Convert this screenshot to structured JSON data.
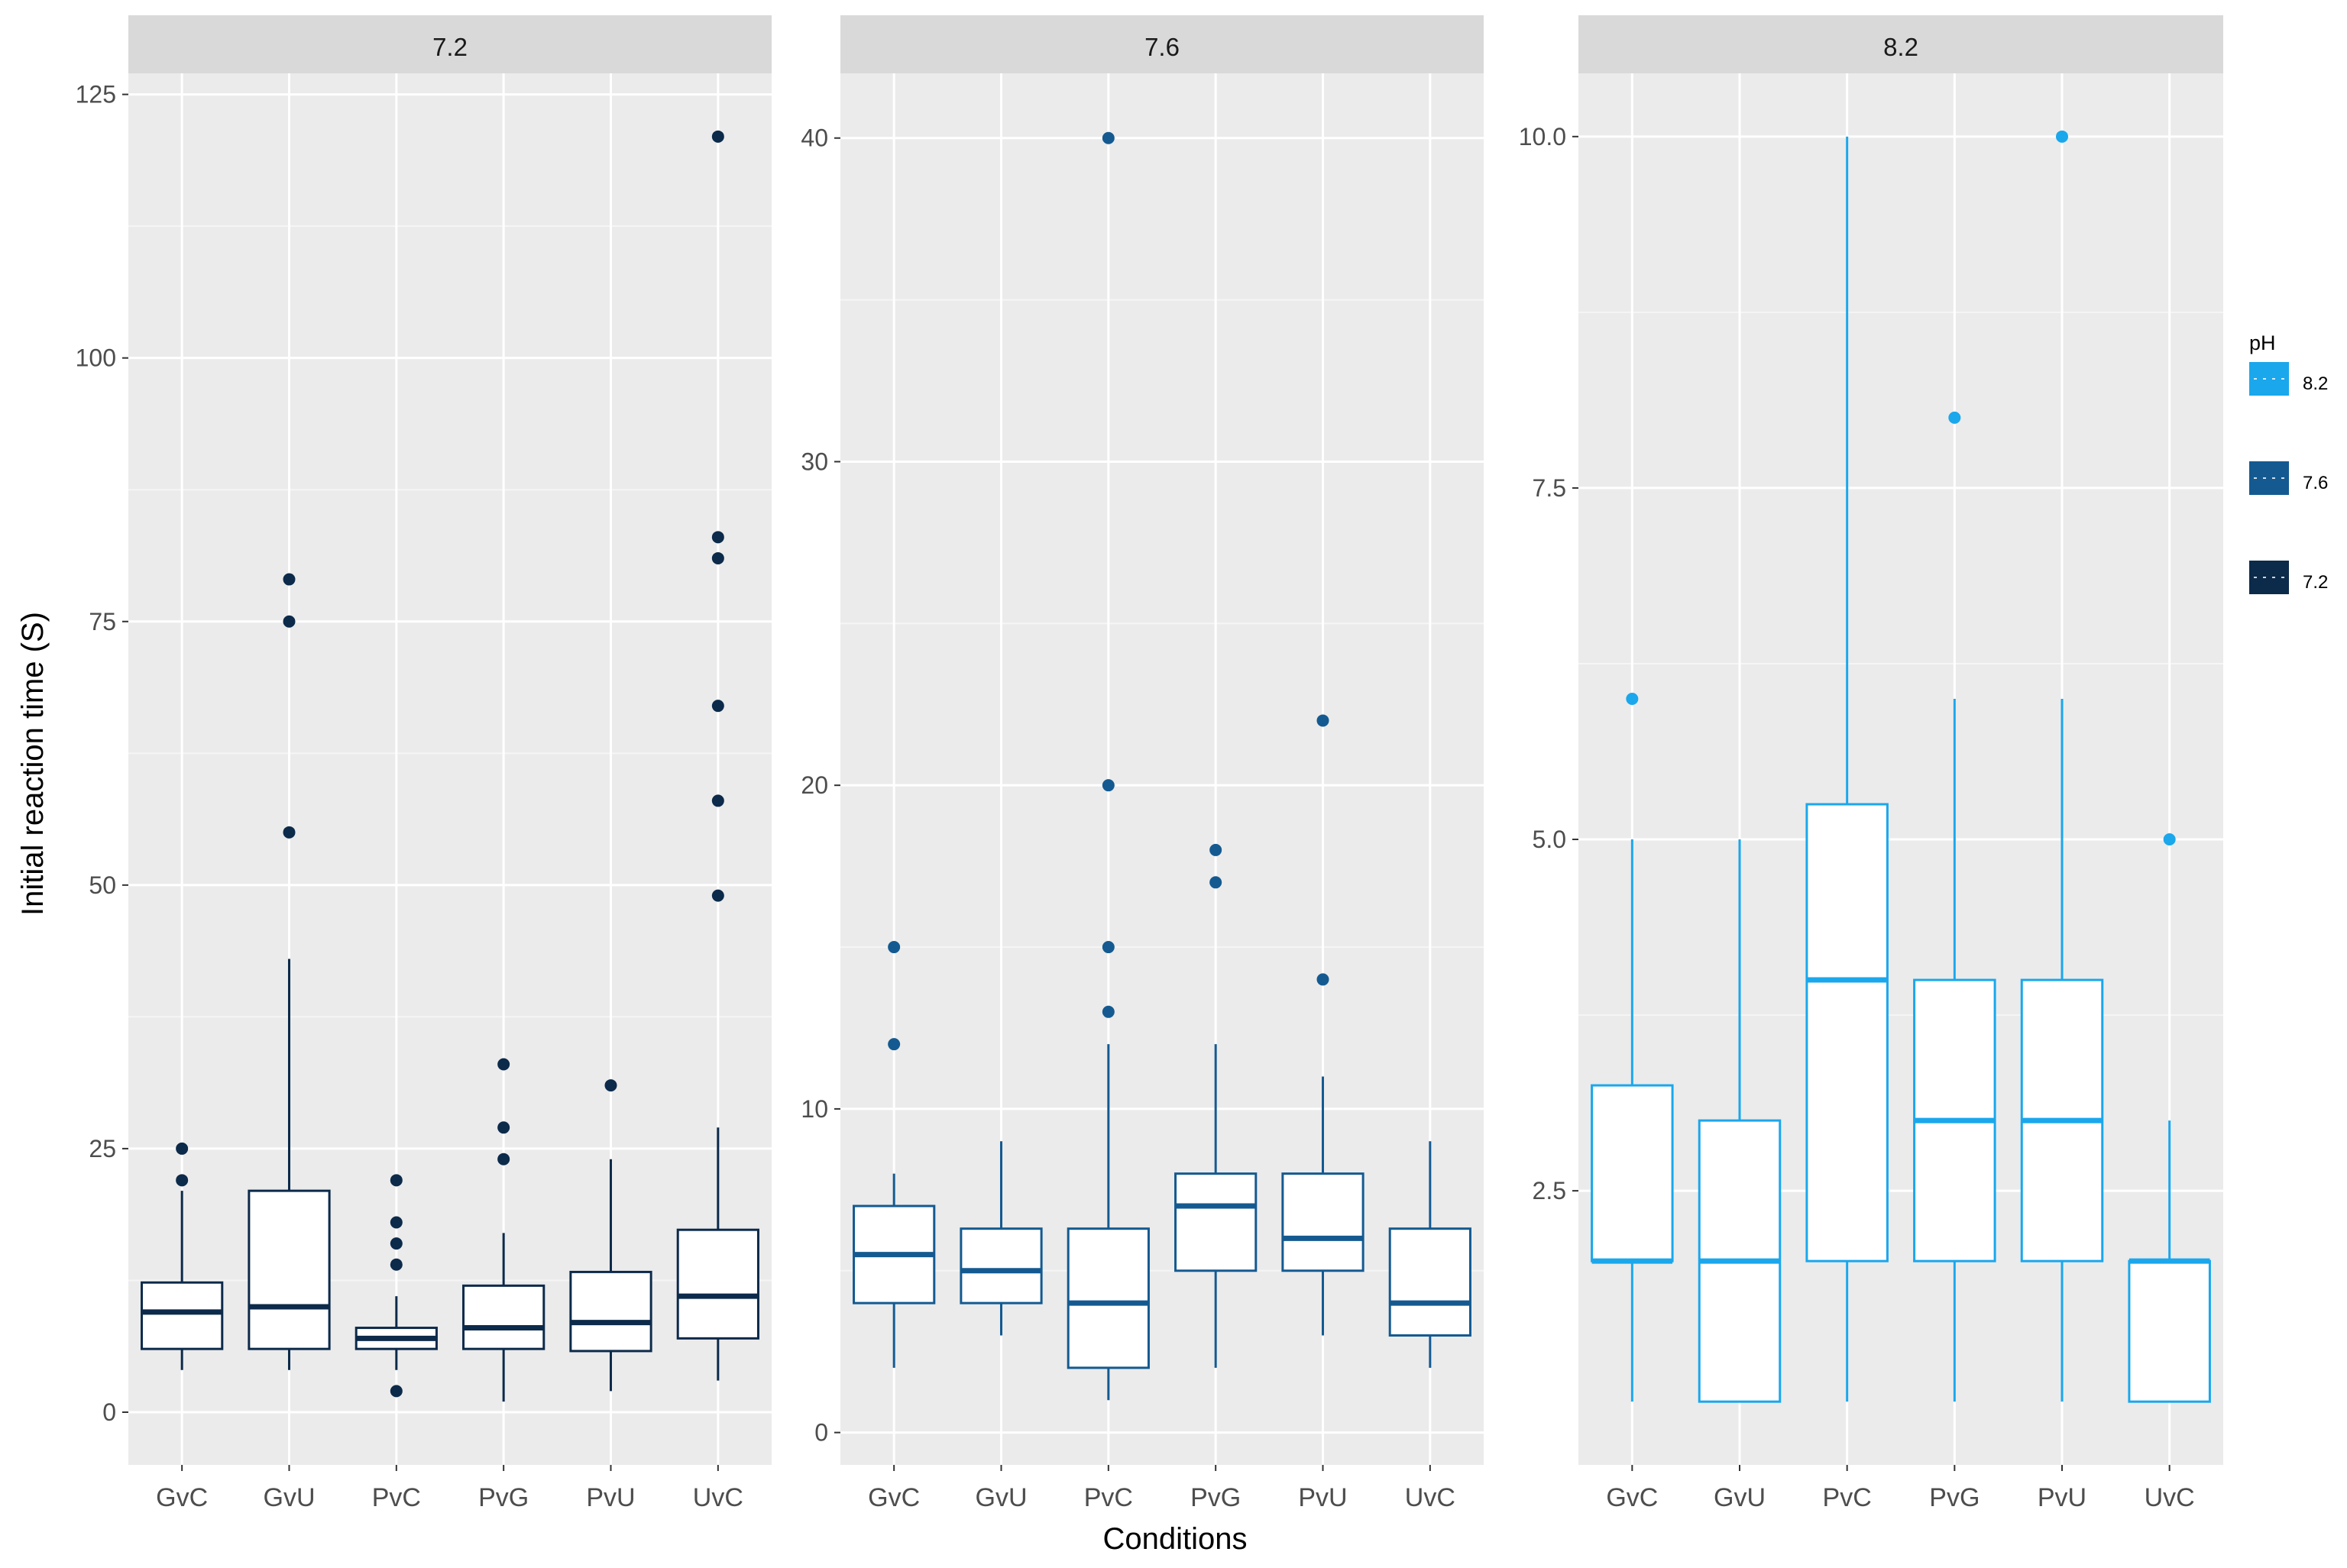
{
  "chart_data": {
    "type": "box",
    "ylabel": "Initial reaction time (S)",
    "xlabel": "Conditions",
    "categories": [
      "GvC",
      "GvU",
      "PvC",
      "PvG",
      "PvU",
      "UvC"
    ],
    "legend": {
      "title": "pH",
      "position": "right",
      "entries": [
        {
          "label": "8.2",
          "color": "#1AA7EC"
        },
        {
          "label": "7.6",
          "color": "#145A91"
        },
        {
          "label": "7.2",
          "color": "#0C2A4A"
        }
      ]
    },
    "grid": true,
    "panels": [
      {
        "strip": "7.2",
        "color": "#0C2A4A",
        "ylim": [
          -5,
          127
        ],
        "yticks": [
          0,
          25,
          50,
          75,
          100,
          125
        ],
        "ytick_labels": [
          "0",
          "25",
          "50",
          "75",
          "100",
          "125"
        ],
        "boxes": [
          {
            "category": "GvC",
            "low": 4,
            "q1": 6,
            "median": 9.5,
            "q3": 12.3,
            "high": 21,
            "outliers": [
              22,
              25
            ]
          },
          {
            "category": "GvU",
            "low": 4,
            "q1": 6,
            "median": 10,
            "q3": 21,
            "high": 43,
            "outliers": [
              55,
              75,
              79
            ]
          },
          {
            "category": "PvC",
            "low": 4,
            "q1": 6,
            "median": 7,
            "q3": 8,
            "high": 11,
            "outliers": [
              2,
              14,
              16,
              18,
              22
            ]
          },
          {
            "category": "PvG",
            "low": 1,
            "q1": 6,
            "median": 8,
            "q3": 12,
            "high": 17,
            "outliers": [
              24,
              27,
              33
            ]
          },
          {
            "category": "PvU",
            "low": 2,
            "q1": 5.8,
            "median": 8.5,
            "q3": 13.3,
            "high": 24,
            "outliers": [
              31
            ]
          },
          {
            "category": "UvC",
            "low": 3,
            "q1": 7,
            "median": 11,
            "q3": 17.3,
            "high": 27,
            "outliers": [
              49,
              58,
              67,
              81,
              83,
              121
            ]
          }
        ]
      },
      {
        "strip": "7.6",
        "color": "#145A91",
        "ylim": [
          -1,
          42
        ],
        "yticks": [
          0,
          10,
          20,
          30,
          40
        ],
        "ytick_labels": [
          "0",
          "10",
          "20",
          "30",
          "40"
        ],
        "boxes": [
          {
            "category": "GvC",
            "low": 2,
            "q1": 4,
            "median": 5.5,
            "q3": 7,
            "high": 8,
            "outliers": [
              12,
              15
            ]
          },
          {
            "category": "GvU",
            "low": 3,
            "q1": 4,
            "median": 5,
            "q3": 6.3,
            "high": 9,
            "outliers": []
          },
          {
            "category": "PvC",
            "low": 1,
            "q1": 2,
            "median": 4,
            "q3": 6.3,
            "high": 12,
            "outliers": [
              13,
              15,
              20,
              40
            ]
          },
          {
            "category": "PvG",
            "low": 2,
            "q1": 5,
            "median": 7,
            "q3": 8,
            "high": 12,
            "outliers": [
              17,
              18
            ]
          },
          {
            "category": "PvU",
            "low": 3,
            "q1": 5,
            "median": 6,
            "q3": 8,
            "high": 11,
            "outliers": [
              14,
              22
            ]
          },
          {
            "category": "UvC",
            "low": 2,
            "q1": 3,
            "median": 4,
            "q3": 6.3,
            "high": 9,
            "outliers": []
          }
        ]
      },
      {
        "strip": "8.2",
        "color": "#1AA7EC",
        "ylim": [
          0.55,
          10.45
        ],
        "yticks": [
          2.5,
          5.0,
          7.5,
          10.0
        ],
        "ytick_labels": [
          "2.5",
          "5.0",
          "7.5",
          "10.0"
        ],
        "boxes": [
          {
            "category": "GvC",
            "low": 1,
            "q1": 2,
            "median": 2,
            "q3": 3.25,
            "high": 5,
            "outliers": [
              6
            ]
          },
          {
            "category": "GvU",
            "low": 1,
            "q1": 1,
            "median": 2,
            "q3": 3,
            "high": 5,
            "outliers": []
          },
          {
            "category": "PvC",
            "low": 1,
            "q1": 2,
            "median": 4,
            "q3": 5.25,
            "high": 10,
            "outliers": []
          },
          {
            "category": "PvG",
            "low": 1,
            "q1": 2,
            "median": 3,
            "q3": 4,
            "high": 6,
            "outliers": [
              8
            ]
          },
          {
            "category": "PvU",
            "low": 1,
            "q1": 2,
            "median": 3,
            "q3": 4,
            "high": 6,
            "outliers": [
              10
            ]
          },
          {
            "category": "UvC",
            "low": 1,
            "q1": 1,
            "median": 2,
            "q3": 2,
            "high": 3,
            "outliers": [
              5
            ]
          }
        ]
      }
    ]
  }
}
